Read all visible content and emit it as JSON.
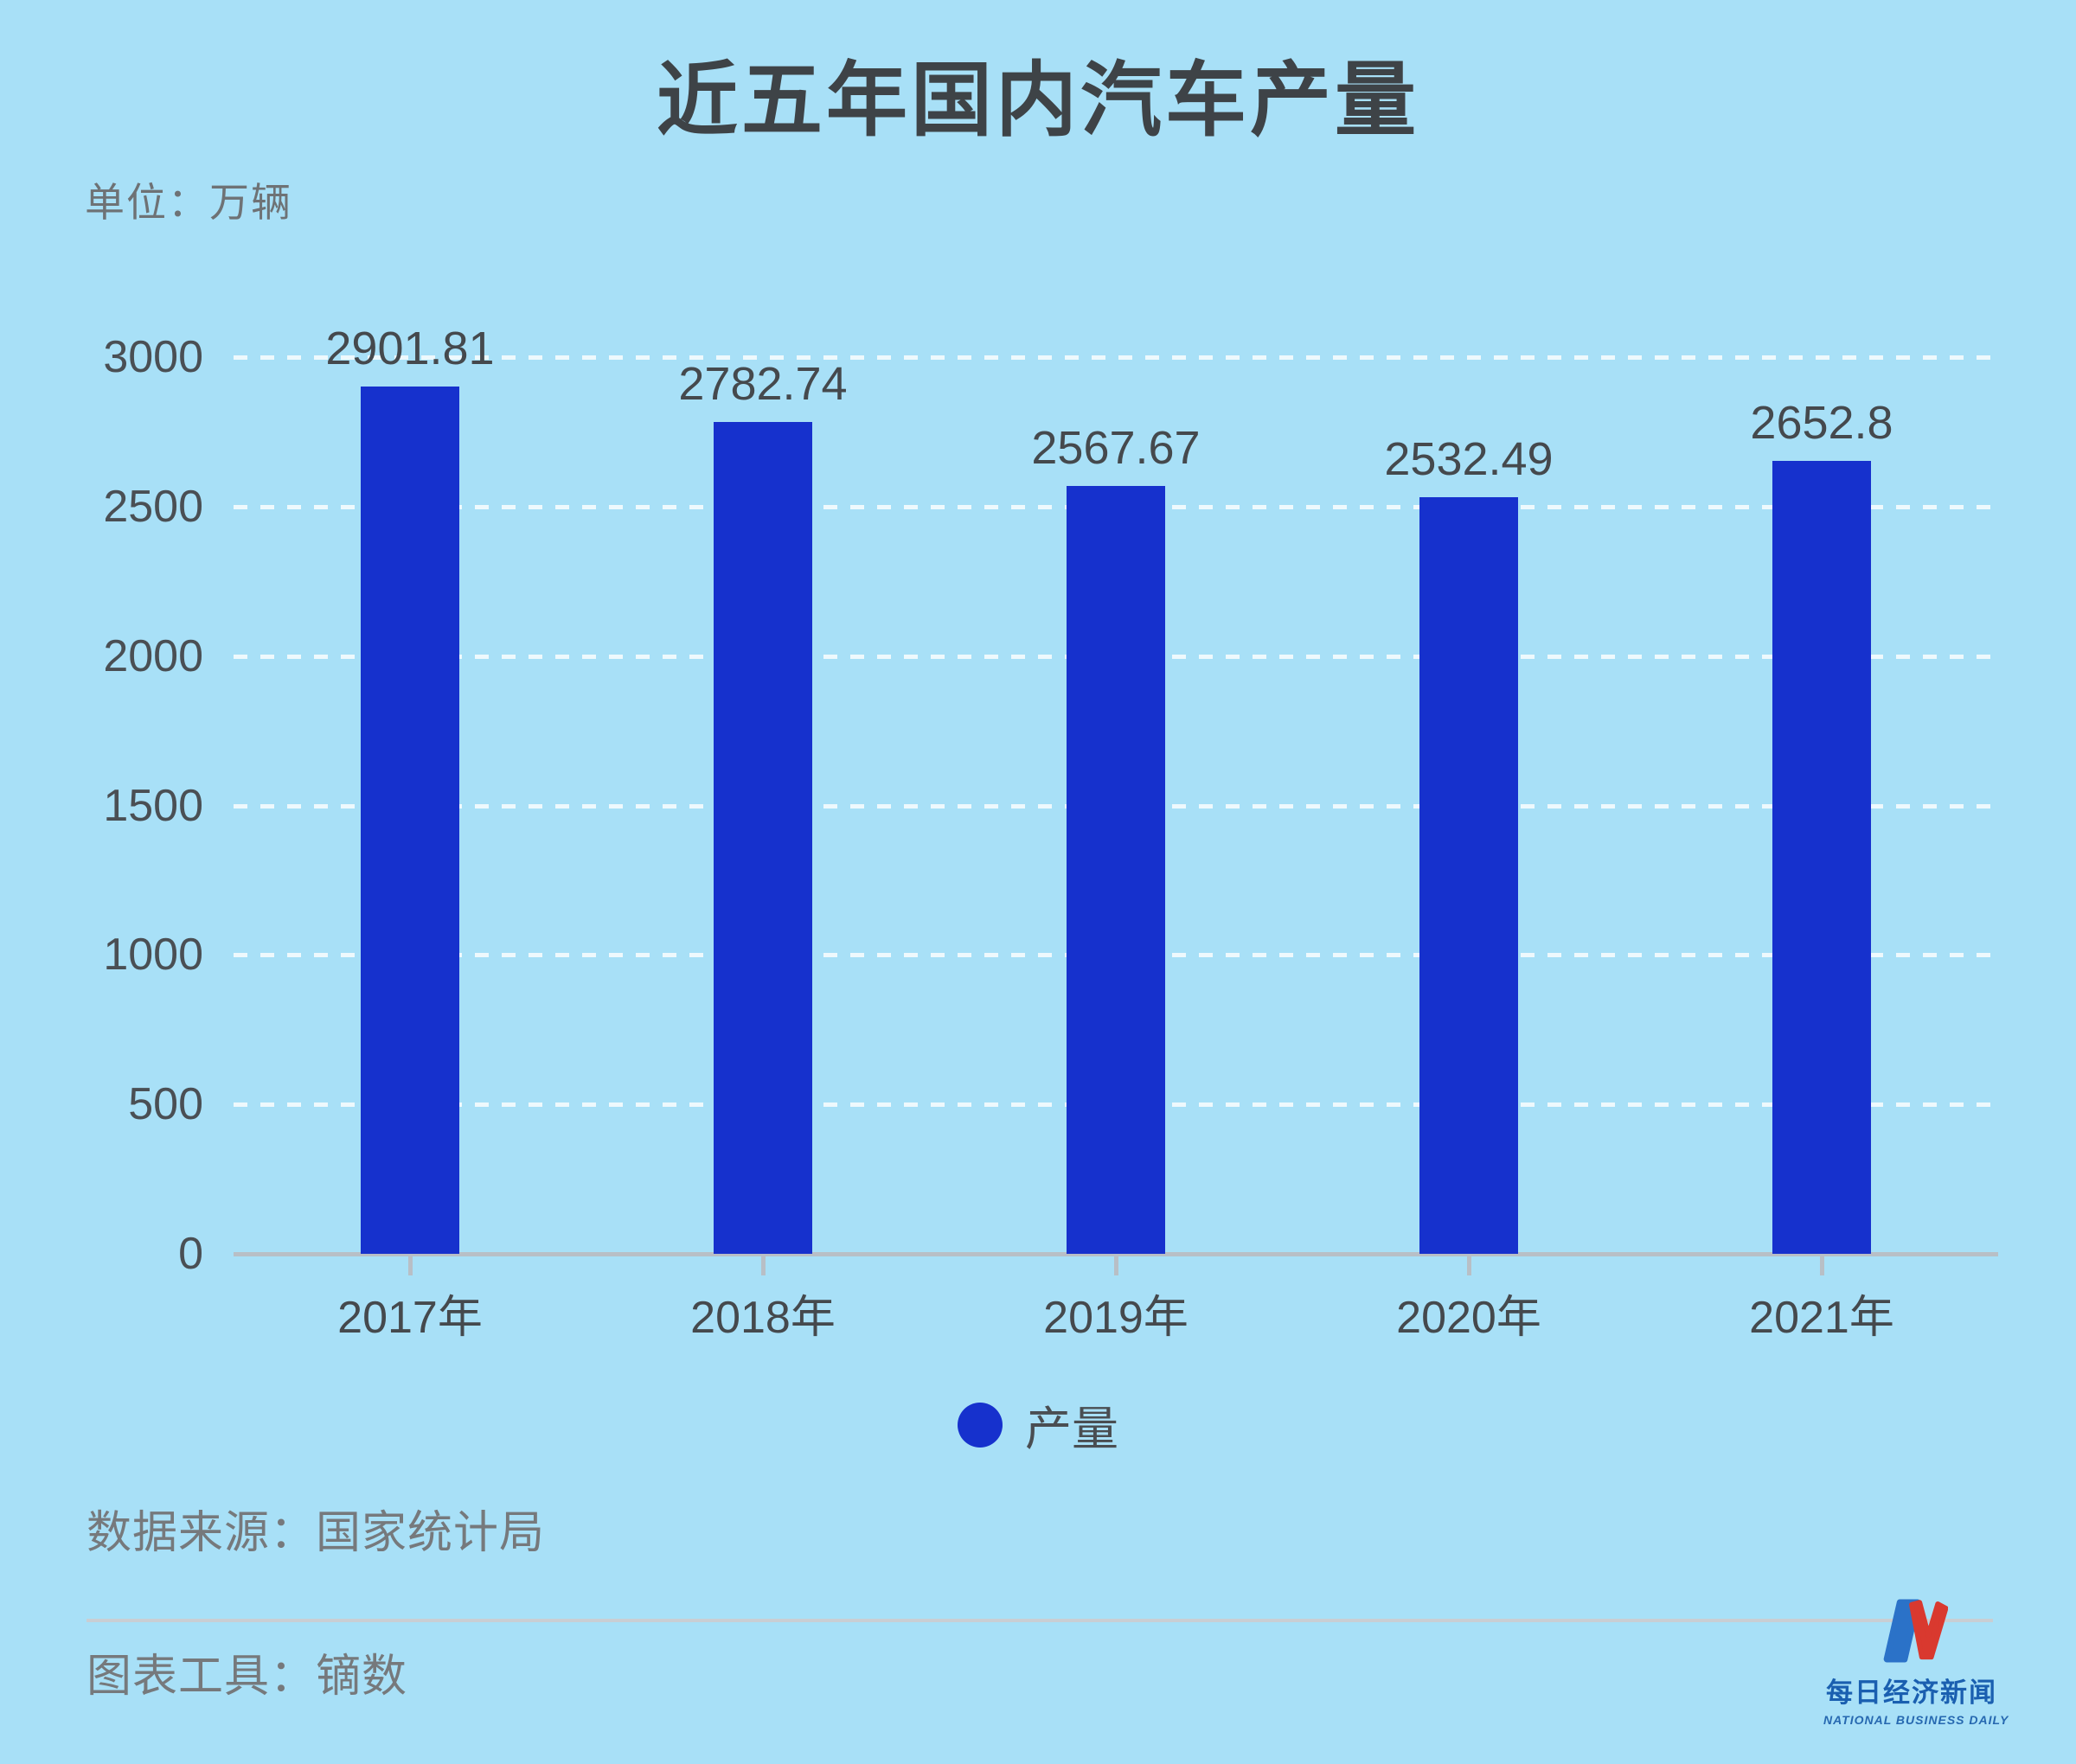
{
  "chart": {
    "title": "近五年国内汽车产量",
    "unit_label": "单位：万辆",
    "source_label": "数据来源：国家统计局",
    "tool_label": "图表工具：镝数",
    "legend_label": "产量"
  },
  "chart_data": {
    "type": "bar",
    "title": "近五年国内汽车产量",
    "unit": "万辆",
    "categories": [
      "2017年",
      "2018年",
      "2019年",
      "2020年",
      "2021年"
    ],
    "values": [
      2901.81,
      2782.74,
      2567.67,
      2532.49,
      2652.8
    ],
    "value_labels": [
      "2901.81",
      "2782.74",
      "2567.67",
      "2532.49",
      "2652.8"
    ],
    "series_name": "产量",
    "xlabel": "",
    "ylabel": "",
    "ylim": [
      0,
      3000
    ],
    "yticks": [
      0,
      500,
      1000,
      1500,
      2000,
      2500,
      3000
    ],
    "grid": "dashed horizontal white lines",
    "legend_position": "bottom",
    "bar_color": "#1631cd",
    "background_color": "#a8e0f7"
  },
  "logo": {
    "cn_name": "每日经济新闻",
    "en_name": "NATIONAL BUSINESS DAILY",
    "mark_blue": "#2b72c8",
    "mark_red": "#d9392f"
  },
  "colors": {
    "background": "#a8e0f7",
    "bar": "#1631cd",
    "title_text": "#3e4347",
    "axis_text": "#4a4f54",
    "muted_text": "#76797c",
    "axis_line": "#b8bfc6",
    "gridline": "rgba(255,255,255,0.8)"
  }
}
